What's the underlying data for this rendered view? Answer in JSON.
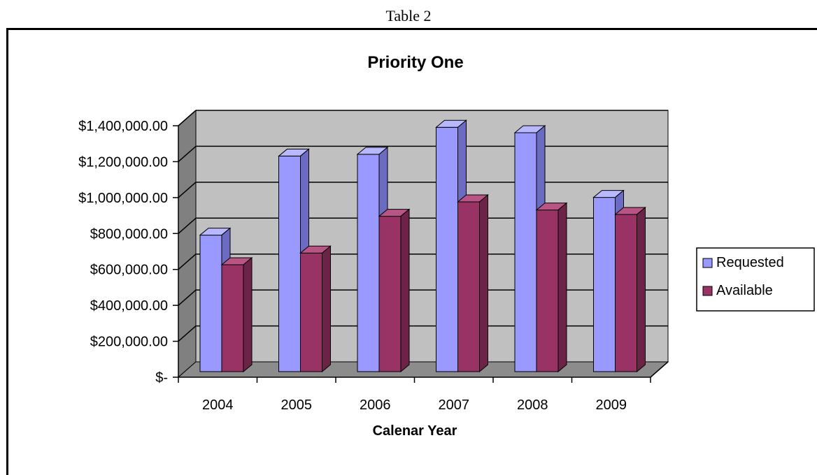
{
  "caption": "Table 2",
  "colors": {
    "requested_front": "#9999ff",
    "requested_top": "#b8b8ff",
    "requested_side": "#6b6bc2",
    "available_front": "#993366",
    "available_top": "#b85585",
    "available_side": "#6b2347",
    "wall": "#c0c0c0",
    "floor": "#8c8c8c",
    "side_wall": "#808080"
  },
  "chart_data": {
    "type": "bar",
    "title": "Priority One",
    "xlabel": "Calenar Year",
    "ylabel": "",
    "categories": [
      "2004",
      "2005",
      "2006",
      "2007",
      "2008",
      "2009"
    ],
    "series": [
      {
        "name": "Requested",
        "values": [
          760000,
          1200000,
          1210000,
          1360000,
          1330000,
          970000
        ]
      },
      {
        "name": "Available",
        "values": [
          595000,
          660000,
          865000,
          945000,
          900000,
          875000
        ]
      }
    ],
    "ylim": [
      0,
      1400000
    ],
    "yticks": [
      0,
      200000,
      400000,
      600000,
      800000,
      1000000,
      1200000,
      1400000
    ],
    "ytick_labels": [
      "$-",
      "$200,000.00",
      "$400,000.00",
      "$600,000.00",
      "$800,000.00",
      "$1,000,000.00",
      "$1,200,000.00",
      "$1,400,000.00"
    ],
    "grid": true,
    "legend_position": "right",
    "style": "3d-clustered-column"
  }
}
